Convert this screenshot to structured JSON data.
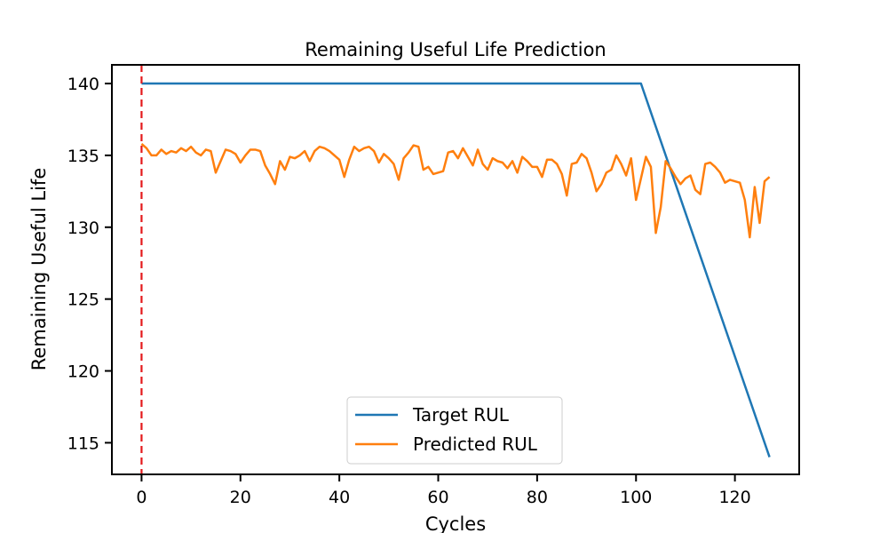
{
  "chart_data": {
    "type": "line",
    "title": "Remaining Useful Life Prediction",
    "xlabel": "Cycles",
    "ylabel": "Remaining Useful Life",
    "xlim": [
      -6,
      133
    ],
    "ylim": [
      112.8,
      141.3
    ],
    "xticks": [
      0,
      20,
      40,
      60,
      80,
      100,
      120
    ],
    "yticks": [
      115,
      120,
      125,
      130,
      135,
      140
    ],
    "grid": false,
    "legend_position": "lower-center",
    "vline": {
      "x": 0,
      "color": "#e41a1c",
      "style": "dashed"
    },
    "series": [
      {
        "name": "Target RUL",
        "color": "#1f77b4",
        "x": [
          0,
          101,
          127
        ],
        "y": [
          140,
          140,
          114
        ]
      },
      {
        "name": "Predicted RUL",
        "color": "#ff7f0e",
        "x": [
          0,
          1,
          2,
          3,
          4,
          5,
          6,
          7,
          8,
          9,
          10,
          11,
          12,
          13,
          14,
          15,
          16,
          17,
          18,
          19,
          20,
          21,
          22,
          23,
          24,
          25,
          26,
          27,
          28,
          29,
          30,
          31,
          32,
          33,
          34,
          35,
          36,
          37,
          38,
          39,
          40,
          41,
          42,
          43,
          44,
          45,
          46,
          47,
          48,
          49,
          50,
          51,
          52,
          53,
          54,
          55,
          56,
          57,
          58,
          59,
          60,
          61,
          62,
          63,
          64,
          65,
          66,
          67,
          68,
          69,
          70,
          71,
          72,
          73,
          74,
          75,
          76,
          77,
          78,
          79,
          80,
          81,
          82,
          83,
          84,
          85,
          86,
          87,
          88,
          89,
          90,
          91,
          92,
          93,
          94,
          95,
          96,
          97,
          98,
          99,
          100,
          101,
          102,
          103,
          104,
          105,
          106,
          107,
          108,
          109,
          110,
          111,
          112,
          113,
          114,
          115,
          116,
          117,
          118,
          119,
          120,
          121,
          122,
          123,
          124,
          125,
          126,
          127
        ],
        "y": [
          135.8,
          135.5,
          135.0,
          135.0,
          135.4,
          135.1,
          135.3,
          135.2,
          135.5,
          135.3,
          135.6,
          135.2,
          135.0,
          135.4,
          135.3,
          133.8,
          134.6,
          135.4,
          135.3,
          135.1,
          134.5,
          135.0,
          135.4,
          135.4,
          135.3,
          134.3,
          133.7,
          133.0,
          134.6,
          134.0,
          134.9,
          134.8,
          135.0,
          135.3,
          134.6,
          135.3,
          135.6,
          135.5,
          135.3,
          135.0,
          134.7,
          133.5,
          134.7,
          135.6,
          135.3,
          135.5,
          135.6,
          135.3,
          134.5,
          135.1,
          134.8,
          134.4,
          133.3,
          134.8,
          135.2,
          135.7,
          135.6,
          134.0,
          134.2,
          133.7,
          133.8,
          133.9,
          135.2,
          135.3,
          134.8,
          135.5,
          134.9,
          134.3,
          135.4,
          134.4,
          134.0,
          134.8,
          134.6,
          134.5,
          134.1,
          134.6,
          133.8,
          134.9,
          134.6,
          134.2,
          134.2,
          133.5,
          134.7,
          134.7,
          134.4,
          133.7,
          132.2,
          134.4,
          134.5,
          135.1,
          134.8,
          133.8,
          132.5,
          133.0,
          133.8,
          134.0,
          135.0,
          134.4,
          133.6,
          134.8,
          131.9,
          133.4,
          134.9,
          134.2,
          129.6,
          131.4,
          134.6,
          134.1,
          133.5,
          133.0,
          133.4,
          133.6,
          132.6,
          132.3,
          134.4,
          134.5,
          134.2,
          133.8,
          133.1,
          133.3,
          133.2,
          133.1,
          131.9,
          129.3,
          132.8,
          130.3,
          133.2,
          133.5
        ]
      }
    ]
  }
}
